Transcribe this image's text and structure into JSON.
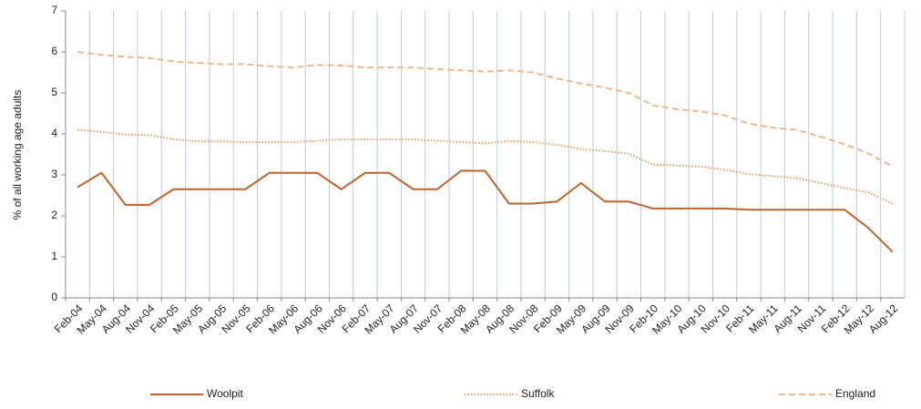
{
  "chart_data": {
    "type": "line",
    "y_label": "% of all working age adults",
    "categories": [
      "Feb-04",
      "May-04",
      "Aug-04",
      "Nov-04",
      "Feb-05",
      "May-05",
      "Aug-05",
      "Nov-05",
      "Feb-06",
      "May-06",
      "Aug-06",
      "Nov-06",
      "Feb-07",
      "May-07",
      "Aug-07",
      "Nov-07",
      "Feb-08",
      "May-08",
      "Aug-08",
      "Nov-08",
      "Feb-09",
      "May-09",
      "Aug-09",
      "Nov-09",
      "Feb-10",
      "May-10",
      "Aug-10",
      "Nov-10",
      "Feb-11",
      "May-11",
      "Aug-11",
      "Nov-11",
      "Feb-12",
      "May-12",
      "Aug-12"
    ],
    "series": [
      {
        "name": "Woolpit",
        "color": "#c0622c",
        "style": "solid",
        "values": [
          2.7,
          3.05,
          2.27,
          2.27,
          2.65,
          2.65,
          2.65,
          2.65,
          3.05,
          3.05,
          3.05,
          2.65,
          3.05,
          3.05,
          2.65,
          2.65,
          3.1,
          3.1,
          2.3,
          2.3,
          2.35,
          2.8,
          2.35,
          2.35,
          2.18,
          2.18,
          2.18,
          2.18,
          2.15,
          2.15,
          2.15,
          2.15,
          2.15,
          1.7,
          1.12
        ]
      },
      {
        "name": "Suffolk",
        "color": "#e8a060",
        "style": "dotted",
        "values": [
          4.1,
          4.05,
          3.98,
          3.97,
          3.87,
          3.82,
          3.82,
          3.8,
          3.8,
          3.8,
          3.83,
          3.87,
          3.87,
          3.87,
          3.87,
          3.83,
          3.8,
          3.77,
          3.83,
          3.8,
          3.73,
          3.63,
          3.58,
          3.52,
          3.25,
          3.23,
          3.2,
          3.13,
          3.02,
          2.97,
          2.92,
          2.8,
          2.68,
          2.57,
          2.3
        ]
      },
      {
        "name": "England",
        "color": "#f4b78c",
        "style": "dashed",
        "values": [
          6.0,
          5.93,
          5.88,
          5.85,
          5.77,
          5.73,
          5.7,
          5.7,
          5.65,
          5.62,
          5.68,
          5.67,
          5.62,
          5.62,
          5.62,
          5.58,
          5.55,
          5.52,
          5.55,
          5.5,
          5.35,
          5.23,
          5.13,
          5.0,
          4.7,
          4.6,
          4.55,
          4.45,
          4.25,
          4.15,
          4.1,
          3.93,
          3.75,
          3.52,
          3.2
        ]
      }
    ],
    "ylim": [
      0,
      7
    ],
    "yticks": [
      0,
      1,
      2,
      3,
      4,
      5,
      6,
      7
    ],
    "grid": "x",
    "legend": "bottom"
  }
}
